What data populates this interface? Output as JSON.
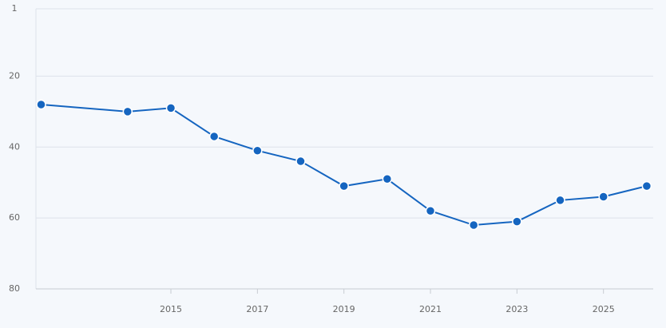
{
  "chart_data": {
    "type": "line",
    "x": [
      2012,
      2014,
      2015,
      2016,
      2017,
      2018,
      2019,
      2020,
      2021,
      2022,
      2023,
      2024,
      2025,
      2026
    ],
    "series": [
      {
        "color": "#1565c0",
        "values": [
          28,
          30,
          29,
          37,
          41,
          44,
          51,
          49,
          58,
          62,
          61,
          55,
          54,
          51
        ]
      }
    ],
    "xlim": [
      2011.88,
      2026.15
    ],
    "xticks": [
      2015,
      2017,
      2019,
      2021,
      2023,
      2025
    ],
    "ylim": [
      1,
      80
    ],
    "yticks": [
      1,
      20,
      40,
      60,
      80
    ],
    "y_inverted": true,
    "grid": true
  }
}
